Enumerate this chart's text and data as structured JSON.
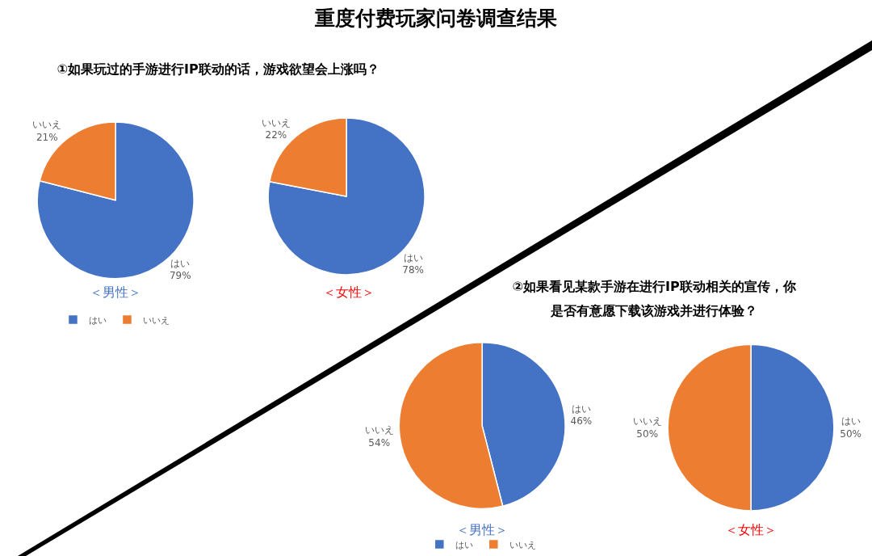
{
  "chart_data": [
    {
      "type": "pie",
      "title": "重度付费玩家问卷调查结果",
      "subtitle": "①如果玩过的手游进行IP联动的话，游戏欲望会上涨吗？",
      "xlabel": "＜男性＞",
      "categories": [
        "はい",
        "いいえ"
      ],
      "values": [
        79,
        21
      ],
      "colors": [
        "#4472c4",
        "#ed7d31"
      ],
      "value_labels": [
        "79%",
        "21%"
      ],
      "legend": "bottom"
    },
    {
      "type": "pie",
      "xlabel": "＜女性＞",
      "categories": [
        "はい",
        "いいえ"
      ],
      "values": [
        78,
        22
      ],
      "colors": [
        "#4472c4",
        "#ed7d31"
      ],
      "value_labels": [
        "78%",
        "22%"
      ]
    },
    {
      "type": "pie",
      "subtitle": "②如果看见某款手游在进行IP联动相关的宣传，你是否有意愿下载该游戏并进行体验？",
      "xlabel": "＜男性＞",
      "categories": [
        "はい",
        "いいえ"
      ],
      "values": [
        46,
        54
      ],
      "colors": [
        "#4472c4",
        "#ed7d31"
      ],
      "value_labels": [
        "46%",
        "54%"
      ],
      "legend": "bottom"
    },
    {
      "type": "pie",
      "xlabel": "＜女性＞",
      "categories": [
        "はい",
        "いいえ"
      ],
      "values": [
        50,
        50
      ],
      "colors": [
        "#4472c4",
        "#ed7d31"
      ],
      "value_labels": [
        "50%",
        "50%"
      ]
    }
  ]
}
